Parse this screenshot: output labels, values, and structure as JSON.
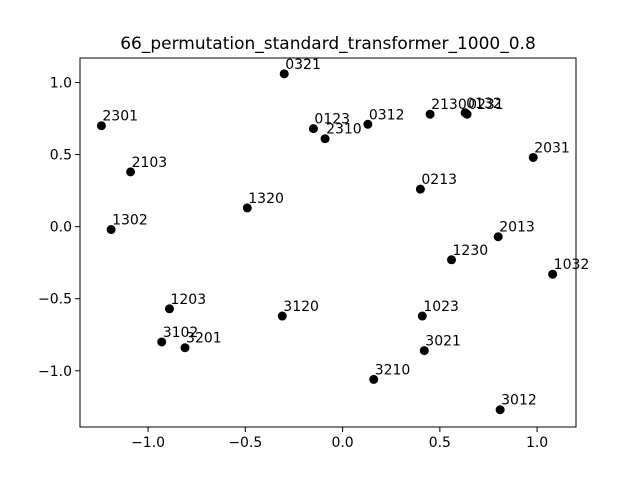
{
  "chart_data": {
    "type": "scatter",
    "title": "66_permutation_standard_transformer_1000_0.8",
    "xlabel": "",
    "ylabel": "",
    "xlim": [
      -1.35,
      1.2
    ],
    "ylim": [
      -1.39,
      1.17
    ],
    "grid": false,
    "xticks": [
      -1.0,
      -0.5,
      0.0,
      0.5,
      1.0
    ],
    "xtick_labels": [
      "−1.0",
      "−0.5",
      "0.0",
      "0.5",
      "1.0"
    ],
    "yticks": [
      1.0,
      0.5,
      0.0,
      -0.5,
      -1.0
    ],
    "ytick_labels": [
      "1.0",
      "0.5",
      "0.0",
      "−0.5",
      "−1.0"
    ],
    "marker_color": "#000000",
    "points": [
      {
        "label": "2301",
        "x": -1.24,
        "y": 0.7
      },
      {
        "label": "2103",
        "x": -1.09,
        "y": 0.38
      },
      {
        "label": "1302",
        "x": -1.19,
        "y": -0.02
      },
      {
        "label": "1203",
        "x": -0.89,
        "y": -0.57
      },
      {
        "label": "3102",
        "x": -0.93,
        "y": -0.8
      },
      {
        "label": "3201",
        "x": -0.81,
        "y": -0.84
      },
      {
        "label": "1320",
        "x": -0.49,
        "y": 0.13
      },
      {
        "label": "3120",
        "x": -0.31,
        "y": -0.62
      },
      {
        "label": "0321",
        "x": -0.3,
        "y": 1.06
      },
      {
        "label": "0123",
        "x": -0.15,
        "y": 0.68
      },
      {
        "label": "2310",
        "x": -0.09,
        "y": 0.61
      },
      {
        "label": "0312",
        "x": 0.13,
        "y": 0.71
      },
      {
        "label": "3210",
        "x": 0.16,
        "y": -1.06
      },
      {
        "label": "0213",
        "x": 0.4,
        "y": 0.26
      },
      {
        "label": "1023",
        "x": 0.41,
        "y": -0.62
      },
      {
        "label": "3021",
        "x": 0.42,
        "y": -0.86
      },
      {
        "label": "2130",
        "x": 0.45,
        "y": 0.78
      },
      {
        "label": "1230",
        "x": 0.56,
        "y": -0.23
      },
      {
        "label": "0132",
        "x": 0.63,
        "y": 0.79
      },
      {
        "label": "0231",
        "x": 0.64,
        "y": 0.78
      },
      {
        "label": "2013",
        "x": 0.8,
        "y": -0.07
      },
      {
        "label": "3012",
        "x": 0.81,
        "y": -1.27
      },
      {
        "label": "2031",
        "x": 0.98,
        "y": 0.48
      },
      {
        "label": "1032",
        "x": 1.08,
        "y": -0.33
      }
    ]
  }
}
